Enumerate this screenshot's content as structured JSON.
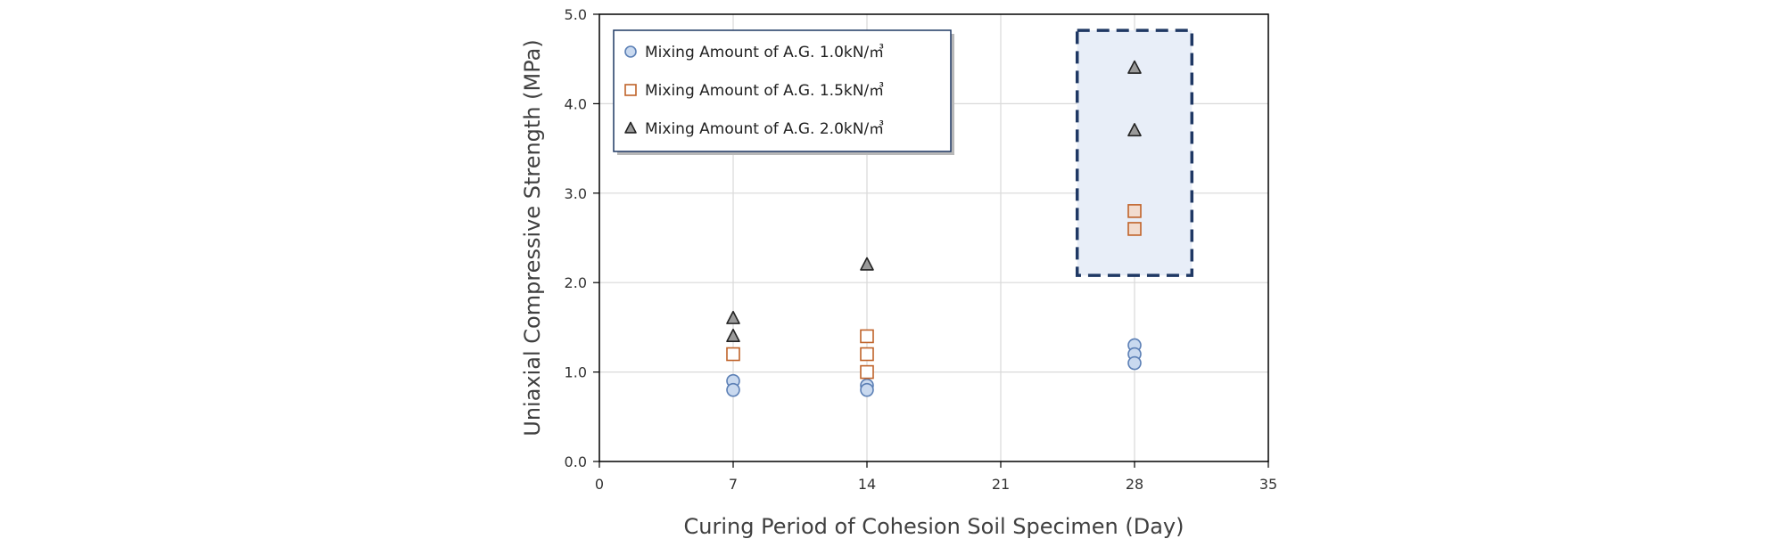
{
  "chart_data": {
    "type": "scatter",
    "title": "",
    "xlabel": "Curing Period of Cohesion Soil Specimen (Day)",
    "ylabel": "Uniaxial Compressive Strength (MPa)",
    "xlim": [
      0,
      35
    ],
    "ylim": [
      0,
      5
    ],
    "x_ticks": [
      0,
      7,
      14,
      21,
      28,
      35
    ],
    "x_tick_labels": [
      "0",
      "7",
      "14",
      "21",
      "28",
      "35"
    ],
    "y_ticks": [
      0,
      1,
      2,
      3,
      4,
      5
    ],
    "y_tick_labels": [
      "0.0",
      "1.0",
      "2.0",
      "3.0",
      "4.0",
      "5.0"
    ],
    "grid": true,
    "legend_position": "top-left",
    "series": [
      {
        "name": "Mixing Amount of A.G. 1.0kN/㎥",
        "marker": "circle",
        "fill": "#c9d9ef",
        "stroke": "#5b7fb5",
        "points": [
          {
            "x": 7,
            "y": 0.9
          },
          {
            "x": 7,
            "y": 0.8
          },
          {
            "x": 14,
            "y": 0.85
          },
          {
            "x": 14,
            "y": 0.8
          },
          {
            "x": 28,
            "y": 1.3
          },
          {
            "x": 28,
            "y": 1.2
          },
          {
            "x": 28,
            "y": 1.1
          }
        ]
      },
      {
        "name": "Mixing Amount of A.G. 1.5kN/㎥",
        "marker": "square",
        "fill": "#ffffff",
        "stroke": "#c0632a",
        "points": [
          {
            "x": 7,
            "y": 1.2
          },
          {
            "x": 14,
            "y": 1.4
          },
          {
            "x": 14,
            "y": 1.2
          },
          {
            "x": 14,
            "y": 1.0
          },
          {
            "x": 28,
            "y": 2.8
          },
          {
            "x": 28,
            "y": 2.6
          }
        ]
      },
      {
        "name": "Mixing Amount of A.G. 2.0kN/㎥",
        "marker": "triangle",
        "fill": "#9a9a9a",
        "stroke": "#222222",
        "points": [
          {
            "x": 7,
            "y": 1.6
          },
          {
            "x": 7,
            "y": 1.4
          },
          {
            "x": 14,
            "y": 2.2
          },
          {
            "x": 28,
            "y": 4.4
          },
          {
            "x": 28,
            "y": 3.7
          }
        ]
      }
    ],
    "highlight_box": {
      "x_range": [
        25,
        31
      ],
      "y_range": [
        2.08,
        4.82
      ],
      "fill": "#e8eef8",
      "stroke": "#1f3864",
      "style": "dashed"
    }
  }
}
